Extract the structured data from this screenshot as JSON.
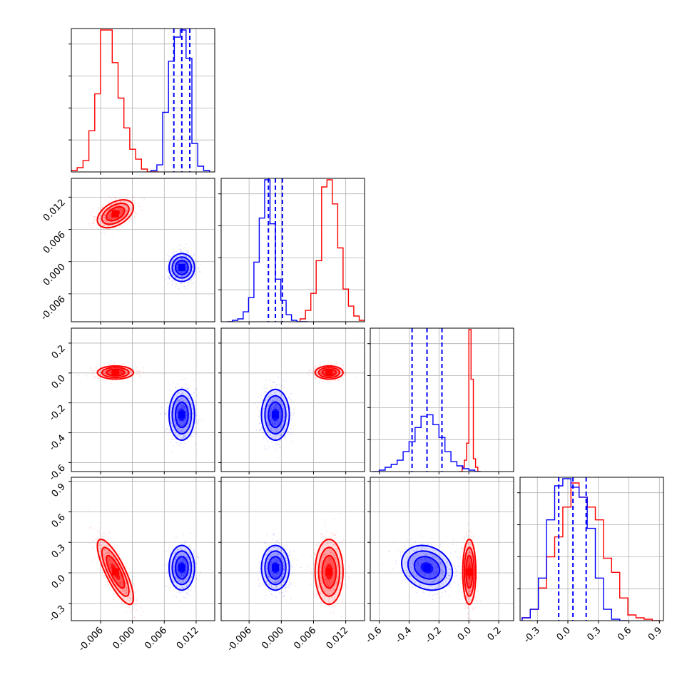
{
  "colors": {
    "red": "#ff0000",
    "blue": "#0000ff",
    "grid": "#b0b0b0",
    "axis": "#000000"
  },
  "chart_data": {
    "type": "corner",
    "grid": true,
    "parameters": [
      {
        "range": [
          -0.0115,
          0.0155
        ],
        "ticks": [
          "-0.006",
          "0.000",
          "0.006",
          "0.012"
        ],
        "tick_values": [
          -0.006,
          0.0,
          0.006,
          0.012
        ]
      },
      {
        "range": [
          -0.0112,
          0.0155
        ],
        "ticks": [
          "-0.006",
          "0.000",
          "0.006",
          "0.012"
        ],
        "tick_values": [
          -0.006,
          0.0,
          0.006,
          0.012
        ]
      },
      {
        "range": [
          -0.66,
          0.3
        ],
        "ticks": [
          "-0.6",
          "-0.4",
          "-0.2",
          "0.0",
          "0.2"
        ],
        "tick_values": [
          -0.6,
          -0.4,
          -0.2,
          0.0,
          0.2
        ]
      },
      {
        "range": [
          -0.47,
          0.94
        ],
        "ticks": [
          "-0.3",
          "0.0",
          "0.3",
          "0.6",
          "0.9"
        ],
        "tick_values": [
          -0.3,
          0.0,
          0.3,
          0.6,
          0.9
        ]
      }
    ],
    "series": [
      {
        "color": "#ff0000",
        "means": [
          -0.0032,
          0.0089,
          0.003,
          0.01
        ],
        "sigmas": [
          0.0017,
          0.0013,
          0.022,
          0.16
        ],
        "corr": {
          "0-1": 0.45,
          "0-2": 0.0,
          "0-3": -0.8,
          "1-2": 0.0,
          "1-3": 0.0,
          "2-3": 0.0
        },
        "histograms": [
          {
            "edges": [
              -0.0115,
              -0.0104,
              -0.0093,
              -0.0082,
              -0.0071,
              -0.006,
              -0.0049,
              -0.0038,
              -0.0027,
              -0.0016,
              -0.0005,
              0.0006,
              0.0017,
              0.0028,
              0.0039,
              0.005
            ],
            "values": [
              0.01,
              0.03,
              0.08,
              0.29,
              0.55,
              1.0,
              1.0,
              0.77,
              0.52,
              0.31,
              0.16,
              0.09,
              0.02,
              0.0,
              0.0
            ]
          },
          {
            "edges": [
              0.0035,
              0.0045,
              0.0055,
              0.0065,
              0.0075,
              0.0085,
              0.0095,
              0.0105,
              0.0115,
              0.0125,
              0.0135,
              0.0145,
              0.0155
            ],
            "values": [
              0.02,
              0.08,
              0.2,
              0.43,
              0.95,
              1.0,
              0.83,
              0.52,
              0.23,
              0.11,
              0.04,
              0.01
            ]
          },
          {
            "edges": [
              -0.06,
              -0.045,
              -0.03,
              -0.015,
              0.0,
              0.015,
              0.03,
              0.045,
              0.06,
              0.075
            ],
            "values": [
              0.0,
              0.03,
              0.08,
              0.2,
              1.0,
              0.65,
              0.09,
              0.03,
              0.0
            ]
          },
          {
            "edges": [
              -0.45,
              -0.37,
              -0.29,
              -0.21,
              -0.13,
              -0.05,
              0.03,
              0.11,
              0.19,
              0.27,
              0.35,
              0.43,
              0.51,
              0.59,
              0.67,
              0.75,
              0.83,
              0.91
            ],
            "values": [
              0.02,
              0.08,
              0.23,
              0.45,
              0.59,
              0.8,
              0.97,
              0.87,
              0.8,
              0.71,
              0.44,
              0.34,
              0.16,
              0.04,
              0.02,
              0.01,
              0.0
            ]
          }
        ],
        "quantile_lines": []
      },
      {
        "color": "#0000ff",
        "means": [
          0.0093,
          -0.0011,
          -0.28,
          0.05
        ],
        "sigmas": [
          0.0012,
          0.0013,
          0.085,
          0.11
        ],
        "corr": {
          "0-1": 0.0,
          "0-2": 0.0,
          "0-3": 0.0,
          "1-2": 0.0,
          "1-3": 0.0,
          "2-3": -0.2
        },
        "histograms": [
          {
            "edges": [
              0.0035,
              0.0046,
              0.0057,
              0.0068,
              0.0079,
              0.009,
              0.0101,
              0.0112,
              0.0123,
              0.0134,
              0.0145
            ],
            "values": [
              0.01,
              0.05,
              0.42,
              0.78,
              0.95,
              1.0,
              0.8,
              0.2,
              0.04,
              0.01
            ]
          },
          {
            "edges": [
              -0.0101,
              -0.0091,
              -0.0081,
              -0.0071,
              -0.0061,
              -0.0051,
              -0.0041,
              -0.0031,
              -0.0021,
              -0.0011,
              -0.0001,
              0.0009,
              0.0019,
              0.0029,
              0.0039,
              0.0049
            ],
            "values": [
              0.0,
              0.01,
              0.02,
              0.07,
              0.17,
              0.42,
              0.73,
              1.0,
              0.69,
              0.3,
              0.15,
              0.05,
              0.01,
              0.0,
              0.0
            ]
          },
          {
            "edges": [
              -0.64,
              -0.6,
              -0.56,
              -0.52,
              -0.48,
              -0.44,
              -0.4,
              -0.36,
              -0.32,
              -0.28,
              -0.24,
              -0.2,
              -0.16,
              -0.12,
              -0.08,
              -0.04,
              0.0,
              0.04,
              0.08
            ],
            "values": [
              0.0,
              0.01,
              0.03,
              0.05,
              0.08,
              0.14,
              0.21,
              0.31,
              0.39,
              0.4,
              0.33,
              0.24,
              0.14,
              0.07,
              0.04,
              0.02,
              0.01,
              0.0
            ]
          },
          {
            "edges": [
              -0.45,
              -0.37,
              -0.29,
              -0.21,
              -0.13,
              -0.05,
              0.03,
              0.11,
              0.19,
              0.27,
              0.35,
              0.43,
              0.51,
              0.59
            ],
            "values": [
              0.02,
              0.08,
              0.3,
              0.71,
              0.95,
              1.0,
              0.94,
              0.87,
              0.65,
              0.3,
              0.08,
              0.01,
              0.0
            ]
          }
        ],
        "quantile_lines": [
          [
            0.0078,
            0.0093,
            0.0108
          ],
          [
            -0.0024,
            -0.0011,
            0.0002
          ],
          [
            -0.38,
            -0.28,
            -0.18
          ],
          [
            -0.09,
            0.05,
            0.18
          ]
        ]
      }
    ]
  }
}
